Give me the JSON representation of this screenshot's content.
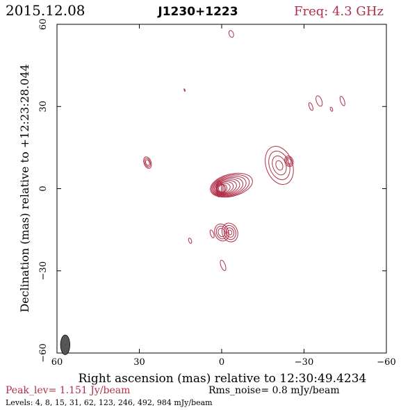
{
  "header": {
    "date": "2015.12.08",
    "source": "J1230+1223",
    "freq": "Freq: 4.3 GHz"
  },
  "footer": {
    "peak": "Peak_lev=  1.151 Jy/beam",
    "rms": "Rms_noise=  0.8 mJy/beam",
    "levels": "Levels:  4,  8,  15,  31,  62,  123,  246,  492,  984 mJy/beam"
  },
  "colors": {
    "contour": "#b0304a",
    "axis": "#000000",
    "beam": "#555555"
  },
  "chart_data": {
    "type": "contour",
    "xlabel": "Right ascension (mas) relative to 12:30:49.4234",
    "ylabel": "Declination (mas) relative to +12:23:28.044",
    "xlim": [
      60,
      -60
    ],
    "ylim": [
      -60,
      60
    ],
    "xticks": [
      60,
      30,
      0,
      -30,
      -60
    ],
    "yticks": [
      -60,
      -30,
      0,
      30,
      60
    ],
    "xtick_labels": [
      "60",
      "30",
      "0",
      "−30",
      "−60"
    ],
    "ytick_labels": [
      "−60",
      "−30",
      "0",
      "30",
      "60"
    ],
    "levels_mJy": [
      4,
      8,
      15,
      31,
      62,
      123,
      246,
      492,
      984
    ],
    "peak_Jy_per_beam": 1.151,
    "rms_mJy_per_beam": 0.8,
    "beam": {
      "x": 57,
      "y": -57,
      "major": 3.6,
      "minor": 1.7
    },
    "core": {
      "x": 0,
      "y": 0
    },
    "components": [
      {
        "x": -21,
        "y": 8.5,
        "rx": 4.8,
        "ry": 7.2
      },
      {
        "x": -24.5,
        "y": 10,
        "rx": 1.5,
        "ry": 2
      },
      {
        "x": -3,
        "y": -16,
        "rx": 2.8,
        "ry": 3.5
      },
      {
        "x": 0,
        "y": -16,
        "rx": 2.5,
        "ry": 3.2
      },
      {
        "x": -0.5,
        "y": -28,
        "rx": 0.8,
        "ry": 2
      },
      {
        "x": 3.5,
        "y": -16.5,
        "rx": 0.6,
        "ry": 1.5
      },
      {
        "x": 11.5,
        "y": -19,
        "rx": 0.5,
        "ry": 1
      },
      {
        "x": 27,
        "y": 9.5,
        "rx": 1.3,
        "ry": 2.2
      },
      {
        "x": -3.5,
        "y": 56.5,
        "rx": 0.8,
        "ry": 1.3
      },
      {
        "x": -32.5,
        "y": 30,
        "rx": 0.6,
        "ry": 1.5
      },
      {
        "x": -35.5,
        "y": 32,
        "rx": 1,
        "ry": 2
      },
      {
        "x": -40,
        "y": 29,
        "rx": 0.4,
        "ry": 0.8
      },
      {
        "x": -44,
        "y": 32,
        "rx": 0.7,
        "ry": 1.8
      },
      {
        "x": 13.5,
        "y": 36,
        "rx": 0.1,
        "ry": 0.5
      }
    ]
  }
}
